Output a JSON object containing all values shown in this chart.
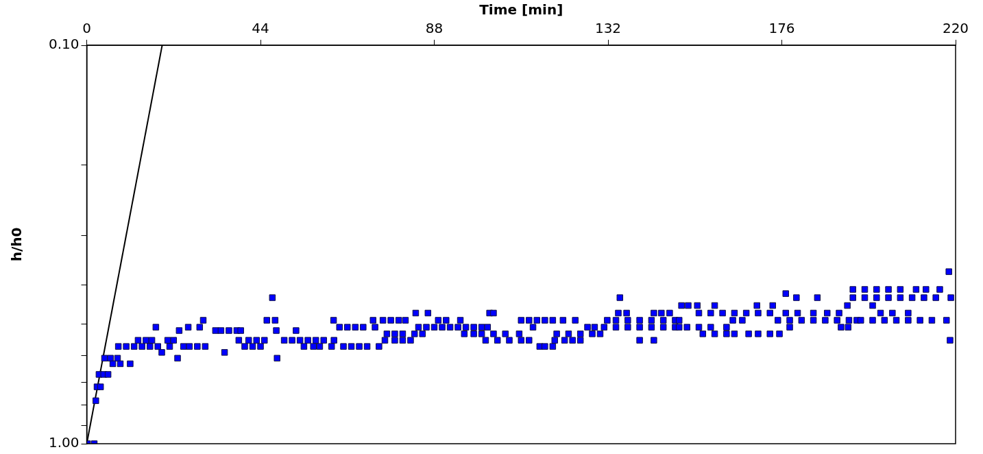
{
  "chart_data": {
    "type": "scatter",
    "xlabel": "Time [min]",
    "ylabel": "h/h0",
    "log": "y",
    "grid": false,
    "legend": false,
    "xlim": [
      0,
      220
    ],
    "xticks": [
      0,
      44,
      88,
      132,
      176,
      220
    ],
    "ylim": [
      1.0,
      0.1
    ],
    "yticks": [
      {
        "value": 0.1,
        "label": "0.10"
      },
      {
        "value": 0.2,
        "label": null
      },
      {
        "value": 0.3,
        "label": null
      },
      {
        "value": 0.4,
        "label": null
      },
      {
        "value": 0.5,
        "label": null
      },
      {
        "value": 0.6,
        "label": null
      },
      {
        "value": 0.7,
        "label": null
      },
      {
        "value": 0.8,
        "label": null
      },
      {
        "value": 0.9,
        "label": null
      },
      {
        "value": 1.0,
        "label": "1.00"
      }
    ],
    "series": [
      {
        "color": "#0000ff",
        "marker": "square",
        "x": [
          0.2,
          1.9,
          2.3,
          2.6,
          3.5,
          3.1,
          4.3,
          5.4,
          4.5,
          6.0,
          7.8,
          6.6,
          8.5,
          11,
          8,
          10,
          12,
          14,
          16,
          18,
          21,
          13,
          15,
          16.5,
          17.5,
          19,
          20.5,
          22,
          23,
          23.4,
          25.7,
          29.5,
          28.6,
          24.5,
          26,
          28,
          30,
          32.6,
          34,
          36,
          38,
          39,
          34.9,
          38.5,
          40,
          42,
          44,
          41,
          43,
          45,
          45.6,
          47.7,
          47,
          48,
          48.2,
          50,
          52,
          53,
          54,
          55,
          57.4,
          56,
          58,
          60,
          62.6,
          59,
          62,
          62.5,
          64,
          66,
          68,
          70,
          73,
          65,
          67,
          69,
          71,
          74,
          72.5,
          75,
          77,
          79,
          80.7,
          75.5,
          78,
          80,
          82,
          76,
          78,
          80,
          83,
          85,
          83.3,
          86.4,
          84,
          86,
          88,
          90,
          92,
          94,
          96,
          98,
          100,
          101.5,
          89,
          91,
          94.6,
          95.6,
          98,
          100,
          103,
          106,
          109.5,
          101,
          104,
          107,
          110,
          112,
          102,
          103,
          110,
          112,
          114,
          116,
          118,
          120.6,
          113,
          114.7,
          116,
          118,
          118.5,
          121,
          123,
          125,
          119,
          122,
          125,
          128,
          130,
          123.7,
          126.8,
          128.6,
          131,
          134,
          137,
          140,
          143,
          146,
          149,
          131.8,
          134,
          137,
          140,
          143,
          146,
          149,
          135,
          134.6,
          136.7,
          140,
          143.6,
          143.6,
          145.5,
          147.6,
          150,
          150,
          152,
          155,
          158,
          162,
          156,
          159,
          162,
          164,
          150.6,
          152.3,
          154.6,
          159,
          155,
          158,
          161,
          164,
          167,
          170,
          173,
          177,
          163.6,
          166,
          167.6,
          170,
          173,
          175.4,
          169.7,
          173.7,
          175,
          178,
          181,
          184,
          187,
          190,
          193,
          195,
          177,
          179.7,
          185,
          178,
          180,
          184,
          187.5,
          190.5,
          191,
          192.8,
          192.6,
          196,
          199,
          202,
          205,
          208,
          211,
          214,
          217.7,
          194,
          197,
          200,
          203,
          206,
          209,
          212,
          215,
          218.8,
          194,
          197,
          200,
          203,
          206,
          210,
          212.5,
          216,
          199,
          201,
          204,
          208,
          218.3,
          218.6
        ],
        "values": [
          1.0,
          1.0,
          0.78,
          0.72,
          0.72,
          0.67,
          0.67,
          0.67,
          0.61,
          0.61,
          0.61,
          0.63,
          0.63,
          0.63,
          0.57,
          0.57,
          0.57,
          0.57,
          0.57,
          0.57,
          0.57,
          0.55,
          0.55,
          0.55,
          0.51,
          0.59,
          0.55,
          0.55,
          0.61,
          0.52,
          0.51,
          0.49,
          0.51,
          0.57,
          0.57,
          0.57,
          0.57,
          0.52,
          0.52,
          0.52,
          0.52,
          0.52,
          0.59,
          0.55,
          0.57,
          0.57,
          0.57,
          0.55,
          0.55,
          0.55,
          0.49,
          0.49,
          0.43,
          0.52,
          0.61,
          0.55,
          0.55,
          0.52,
          0.55,
          0.57,
          0.57,
          0.55,
          0.55,
          0.55,
          0.55,
          0.57,
          0.57,
          0.49,
          0.51,
          0.51,
          0.51,
          0.51,
          0.51,
          0.57,
          0.57,
          0.57,
          0.57,
          0.57,
          0.49,
          0.49,
          0.49,
          0.49,
          0.49,
          0.55,
          0.55,
          0.55,
          0.55,
          0.53,
          0.53,
          0.53,
          0.53,
          0.53,
          0.47,
          0.47,
          0.51,
          0.51,
          0.51,
          0.51,
          0.51,
          0.51,
          0.51,
          0.51,
          0.51,
          0.51,
          0.49,
          0.49,
          0.49,
          0.53,
          0.53,
          0.53,
          0.53,
          0.53,
          0.53,
          0.55,
          0.55,
          0.55,
          0.55,
          0.55,
          0.47,
          0.47,
          0.49,
          0.49,
          0.49,
          0.49,
          0.49,
          0.49,
          0.51,
          0.57,
          0.57,
          0.57,
          0.55,
          0.55,
          0.55,
          0.55,
          0.53,
          0.53,
          0.53,
          0.53,
          0.53,
          0.49,
          0.51,
          0.51,
          0.51,
          0.51,
          0.51,
          0.51,
          0.51,
          0.51,
          0.51,
          0.49,
          0.49,
          0.49,
          0.49,
          0.49,
          0.49,
          0.49,
          0.43,
          0.47,
          0.47,
          0.55,
          0.55,
          0.47,
          0.47,
          0.47,
          0.49,
          0.51,
          0.51,
          0.51,
          0.51,
          0.51,
          0.53,
          0.53,
          0.53,
          0.53,
          0.45,
          0.45,
          0.45,
          0.45,
          0.47,
          0.47,
          0.47,
          0.47,
          0.47,
          0.47,
          0.47,
          0.47,
          0.49,
          0.49,
          0.53,
          0.53,
          0.53,
          0.53,
          0.45,
          0.45,
          0.49,
          0.49,
          0.49,
          0.49,
          0.49,
          0.49,
          0.49,
          0.49,
          0.42,
          0.43,
          0.43,
          0.51,
          0.47,
          0.47,
          0.47,
          0.47,
          0.51,
          0.51,
          0.45,
          0.49,
          0.49,
          0.49,
          0.49,
          0.49,
          0.49,
          0.49,
          0.49,
          0.43,
          0.43,
          0.43,
          0.43,
          0.43,
          0.43,
          0.43,
          0.43,
          0.43,
          0.41,
          0.41,
          0.41,
          0.41,
          0.41,
          0.41,
          0.41,
          0.41,
          0.45,
          0.47,
          0.47,
          0.47,
          0.37,
          0.55
        ]
      },
      {
        "type": "line",
        "color": "#000000",
        "marker": "none",
        "line_style": "solid",
        "x": [
          0,
          19.1
        ],
        "values": [
          1.0,
          0.1
        ]
      }
    ]
  }
}
